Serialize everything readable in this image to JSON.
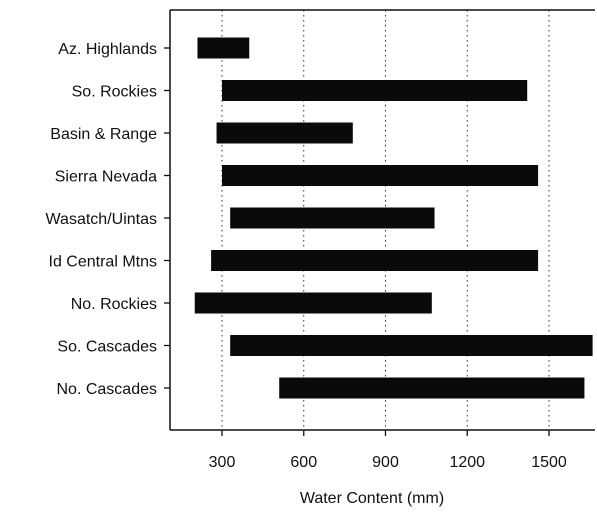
{
  "chart_data": {
    "type": "bar",
    "orientation": "horizontal",
    "bar_style": "floating-range",
    "categories": [
      "Az. Highlands",
      "So. Rockies",
      "Basin & Range",
      "Sierra Nevada",
      "Wasatch/Uintas",
      "Id Central Mtns",
      "No. Rockies",
      "So. Cascades",
      "No. Cascades"
    ],
    "ranges": [
      [
        210,
        400
      ],
      [
        300,
        1420
      ],
      [
        280,
        780
      ],
      [
        300,
        1460
      ],
      [
        330,
        1080
      ],
      [
        260,
        1460
      ],
      [
        200,
        1070
      ],
      [
        330,
        1660
      ],
      [
        510,
        1630
      ]
    ],
    "xlabel": "Water Content (mm)",
    "ylabel": "",
    "title": "",
    "xlim": [
      30,
      1680
    ],
    "xticks": [
      300,
      600,
      900,
      1200,
      1500
    ],
    "grid": "vertical dotted",
    "bar_color": "#0a0a0a"
  }
}
